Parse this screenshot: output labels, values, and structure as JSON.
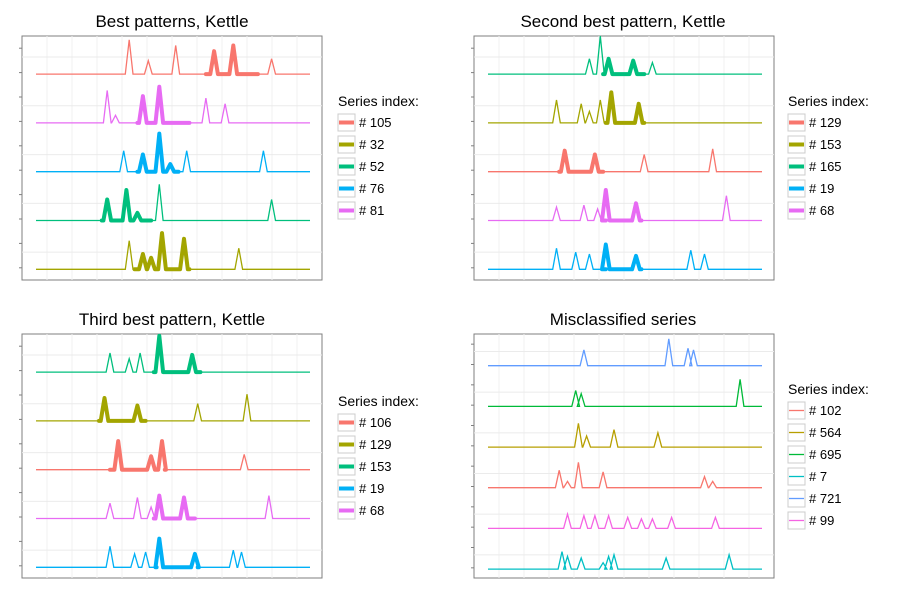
{
  "chart_data": [
    {
      "type": "line",
      "title": "Best patterns, Kettle",
      "legend_title": "Series index:",
      "legend_placement": "right",
      "grid": true,
      "x_range": [
        0,
        100
      ],
      "series_order_top_to_bottom": [
        "# 105",
        "# 81",
        "# 76",
        "# 52",
        "# 32"
      ],
      "legend_entries": [
        "# 105",
        "# 32",
        "# 52",
        "# 76",
        "# 81"
      ],
      "series": [
        {
          "name": "# 105",
          "color": "#F8766D",
          "spikes": [
            {
              "x": 34,
              "h": 0.9
            },
            {
              "x": 41,
              "h": 0.35
            },
            {
              "x": 51,
              "h": 0.75
            },
            {
              "x": 65,
              "h": 0.6
            },
            {
              "x": 72,
              "h": 0.75
            },
            {
              "x": 86,
              "h": 0.4
            }
          ],
          "highlights": [
            [
              62,
              81
            ]
          ]
        },
        {
          "name": "# 81",
          "color": "#E76BF3",
          "spikes": [
            {
              "x": 26,
              "h": 0.85
            },
            {
              "x": 29,
              "h": 0.2
            },
            {
              "x": 39,
              "h": 0.7
            },
            {
              "x": 45,
              "h": 0.95
            },
            {
              "x": 62,
              "h": 0.65
            },
            {
              "x": 69,
              "h": 0.5
            }
          ],
          "highlights": [
            [
              37,
              56
            ]
          ]
        },
        {
          "name": "# 76",
          "color": "#00B0F6",
          "spikes": [
            {
              "x": 32,
              "h": 0.55
            },
            {
              "x": 39,
              "h": 0.45
            },
            {
              "x": 45,
              "h": 1.0
            },
            {
              "x": 49,
              "h": 0.2
            },
            {
              "x": 55,
              "h": 0.55
            },
            {
              "x": 83,
              "h": 0.55
            }
          ],
          "highlights": [
            [
              37,
              52
            ]
          ]
        },
        {
          "name": "# 52",
          "color": "#00BF7D",
          "spikes": [
            {
              "x": 26,
              "h": 0.55
            },
            {
              "x": 33,
              "h": 0.8
            },
            {
              "x": 37,
              "h": 0.2
            },
            {
              "x": 45,
              "h": 0.95
            },
            {
              "x": 86,
              "h": 0.55
            }
          ],
          "highlights": [
            [
              24,
              42
            ]
          ]
        },
        {
          "name": "# 32",
          "color": "#A3A500",
          "spikes": [
            {
              "x": 34,
              "h": 0.75
            },
            {
              "x": 39,
              "h": 0.4
            },
            {
              "x": 42,
              "h": 0.3
            },
            {
              "x": 46,
              "h": 0.95
            },
            {
              "x": 54,
              "h": 0.8
            },
            {
              "x": 74,
              "h": 0.55
            }
          ],
          "highlights": [
            [
              36,
              56
            ]
          ]
        }
      ]
    },
    {
      "type": "line",
      "title": "Second best pattern, Kettle",
      "legend_title": "Series index:",
      "legend_placement": "right",
      "grid": true,
      "x_range": [
        0,
        100
      ],
      "series_order_top_to_bottom": [
        "# 165",
        "# 153",
        "# 129",
        "# 68",
        "# 19"
      ],
      "legend_entries": [
        "# 129",
        "# 153",
        "# 165",
        "# 19",
        "# 68"
      ],
      "series": [
        {
          "name": "# 165",
          "color": "#00BF7D",
          "spikes": [
            {
              "x": 37,
              "h": 0.4
            },
            {
              "x": 41,
              "h": 1.0
            },
            {
              "x": 44,
              "h": 0.4
            },
            {
              "x": 53,
              "h": 0.35
            },
            {
              "x": 60,
              "h": 0.3
            }
          ],
          "highlights": [
            [
              42,
              57
            ]
          ]
        },
        {
          "name": "# 153",
          "color": "#A3A500",
          "spikes": [
            {
              "x": 25,
              "h": 0.6
            },
            {
              "x": 34,
              "h": 0.5
            },
            {
              "x": 37,
              "h": 0.3
            },
            {
              "x": 41,
              "h": 0.6
            },
            {
              "x": 45,
              "h": 0.8
            },
            {
              "x": 55,
              "h": 0.5
            }
          ],
          "highlights": [
            [
              43,
              57
            ]
          ]
        },
        {
          "name": "# 129",
          "color": "#F8766D",
          "spikes": [
            {
              "x": 28,
              "h": 0.55
            },
            {
              "x": 39,
              "h": 0.45
            },
            {
              "x": 57,
              "h": 0.45
            },
            {
              "x": 82,
              "h": 0.6
            }
          ],
          "highlights": [
            [
              26,
              42
            ]
          ]
        },
        {
          "name": "# 68",
          "color": "#E76BF3",
          "spikes": [
            {
              "x": 25,
              "h": 0.35
            },
            {
              "x": 35,
              "h": 0.4
            },
            {
              "x": 40,
              "h": 0.3
            },
            {
              "x": 43,
              "h": 0.8
            },
            {
              "x": 54,
              "h": 0.45
            },
            {
              "x": 87,
              "h": 0.65
            }
          ],
          "highlights": [
            [
              43,
              56
            ]
          ]
        },
        {
          "name": "# 19",
          "color": "#00B0F6",
          "spikes": [
            {
              "x": 25,
              "h": 0.55
            },
            {
              "x": 32,
              "h": 0.45
            },
            {
              "x": 37,
              "h": 0.4
            },
            {
              "x": 43,
              "h": 0.65
            },
            {
              "x": 54,
              "h": 0.35
            },
            {
              "x": 74,
              "h": 0.5
            },
            {
              "x": 79,
              "h": 0.4
            }
          ],
          "highlights": [
            [
              43,
              56
            ]
          ]
        }
      ]
    },
    {
      "type": "line",
      "title": "Third best pattern, Kettle",
      "legend_title": "Series index:",
      "legend_placement": "right",
      "grid": true,
      "x_range": [
        0,
        100
      ],
      "series_order_top_to_bottom": [
        "# 153",
        "# 129",
        "# 106",
        "# 68",
        "# 19"
      ],
      "legend_entries": [
        "# 106",
        "# 129",
        "# 153",
        "# 19",
        "# 68"
      ],
      "series": [
        {
          "name": "# 153",
          "color": "#00BF7D",
          "spikes": [
            {
              "x": 27,
              "h": 0.5
            },
            {
              "x": 34,
              "h": 0.35
            },
            {
              "x": 38,
              "h": 0.5
            },
            {
              "x": 45,
              "h": 0.95
            },
            {
              "x": 57,
              "h": 0.45
            }
          ],
          "highlights": [
            [
              43,
              60
            ]
          ]
        },
        {
          "name": "# 129",
          "color": "#A3A500",
          "spikes": [
            {
              "x": 25,
              "h": 0.6
            },
            {
              "x": 37,
              "h": 0.4
            },
            {
              "x": 59,
              "h": 0.45
            },
            {
              "x": 77,
              "h": 0.7
            }
          ],
          "highlights": [
            [
              23,
              40
            ]
          ]
        },
        {
          "name": "# 106",
          "color": "#F8766D",
          "spikes": [
            {
              "x": 30,
              "h": 0.75
            },
            {
              "x": 42,
              "h": 0.35
            },
            {
              "x": 46,
              "h": 0.75
            },
            {
              "x": 76,
              "h": 0.4
            }
          ],
          "highlights": [
            [
              27,
              47
            ]
          ]
        },
        {
          "name": "# 68",
          "color": "#E76BF3",
          "spikes": [
            {
              "x": 27,
              "h": 0.4
            },
            {
              "x": 37,
              "h": 0.55
            },
            {
              "x": 42,
              "h": 0.3
            },
            {
              "x": 45,
              "h": 0.6
            },
            {
              "x": 54,
              "h": 0.55
            },
            {
              "x": 85,
              "h": 0.6
            }
          ],
          "highlights": [
            [
              43,
              58
            ]
          ]
        },
        {
          "name": "# 19",
          "color": "#00B0F6",
          "spikes": [
            {
              "x": 27,
              "h": 0.55
            },
            {
              "x": 36,
              "h": 0.35
            },
            {
              "x": 40,
              "h": 0.4
            },
            {
              "x": 45,
              "h": 0.75
            },
            {
              "x": 58,
              "h": 0.35
            },
            {
              "x": 72,
              "h": 0.45
            },
            {
              "x": 75,
              "h": 0.4
            }
          ],
          "highlights": [
            [
              44,
              59
            ]
          ]
        }
      ]
    },
    {
      "type": "line",
      "title": "Misclassified series",
      "legend_title": "Series index:",
      "legend_placement": "right",
      "grid": true,
      "x_range": [
        0,
        100
      ],
      "series_order_top_to_bottom": [
        "# 721",
        "# 695",
        "# 564",
        "# 102",
        "# 99",
        "# 7"
      ],
      "legend_entries": [
        "# 102",
        "# 564",
        "# 695",
        "# 7",
        "# 721",
        "# 99"
      ],
      "series": [
        {
          "name": "# 721",
          "color": "#619CFF",
          "spikes": [
            {
              "x": 35,
              "h": 0.5
            },
            {
              "x": 66,
              "h": 0.85
            },
            {
              "x": 73,
              "h": 0.55
            },
            {
              "x": 75,
              "h": 0.5
            }
          ],
          "highlights": []
        },
        {
          "name": "# 695",
          "color": "#00BA38",
          "spikes": [
            {
              "x": 32,
              "h": 0.5
            },
            {
              "x": 34,
              "h": 0.4
            },
            {
              "x": 92,
              "h": 0.85
            }
          ],
          "highlights": []
        },
        {
          "name": "# 564",
          "color": "#B79F00",
          "spikes": [
            {
              "x": 33,
              "h": 0.75
            },
            {
              "x": 36,
              "h": 0.35
            },
            {
              "x": 46,
              "h": 0.55
            },
            {
              "x": 62,
              "h": 0.45
            }
          ],
          "highlights": []
        },
        {
          "name": "# 102",
          "color": "#F8766D",
          "spikes": [
            {
              "x": 26,
              "h": 0.55
            },
            {
              "x": 29,
              "h": 0.2
            },
            {
              "x": 33,
              "h": 0.8
            },
            {
              "x": 42,
              "h": 0.5
            },
            {
              "x": 79,
              "h": 0.35
            },
            {
              "x": 82,
              "h": 0.2
            }
          ],
          "highlights": []
        },
        {
          "name": "# 99",
          "color": "#F564E3",
          "spikes": [
            {
              "x": 29,
              "h": 0.45
            },
            {
              "x": 35,
              "h": 0.4
            },
            {
              "x": 39,
              "h": 0.4
            },
            {
              "x": 44,
              "h": 0.4
            },
            {
              "x": 51,
              "h": 0.35
            },
            {
              "x": 56,
              "h": 0.3
            },
            {
              "x": 60,
              "h": 0.3
            },
            {
              "x": 67,
              "h": 0.35
            },
            {
              "x": 83,
              "h": 0.35
            }
          ],
          "highlights": []
        },
        {
          "name": "# 7",
          "color": "#00BFC4",
          "spikes": [
            {
              "x": 27,
              "h": 0.55
            },
            {
              "x": 29,
              "h": 0.4
            },
            {
              "x": 34,
              "h": 0.35
            },
            {
              "x": 42,
              "h": 0.2
            },
            {
              "x": 44,
              "h": 0.4
            },
            {
              "x": 46,
              "h": 0.45
            },
            {
              "x": 65,
              "h": 0.35
            },
            {
              "x": 88,
              "h": 0.45
            }
          ],
          "highlights": []
        }
      ]
    }
  ]
}
